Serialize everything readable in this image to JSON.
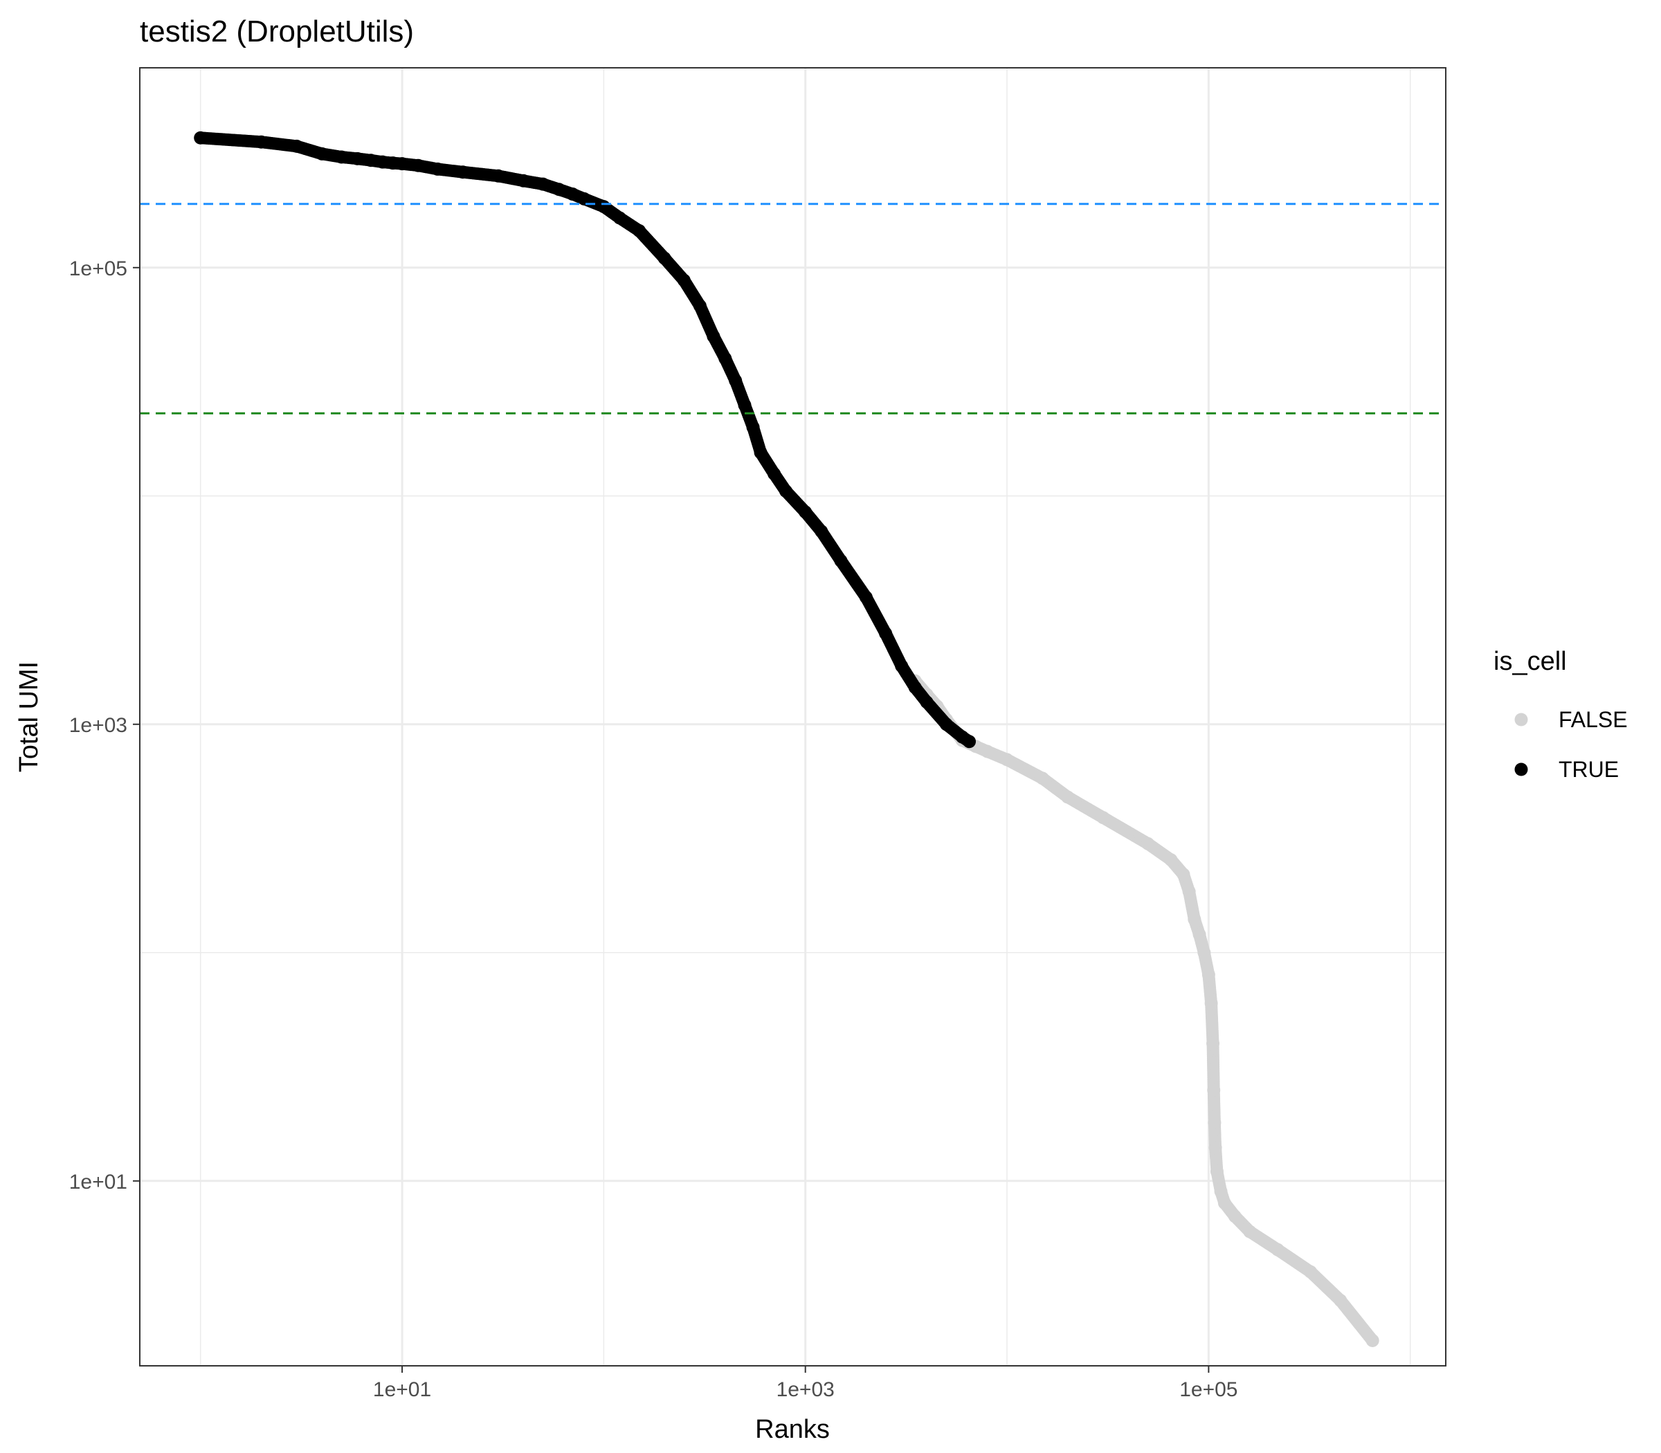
{
  "chart_data": {
    "type": "scatter",
    "title": "testis2 (DropletUtils)",
    "xlabel": "Ranks",
    "ylabel": "Total UMI",
    "x_scale": "log10",
    "y_scale": "log10",
    "xlim": [
      0.5,
      1500000
    ],
    "ylim": [
      1.55,
      750000
    ],
    "x_ticks": [
      {
        "value": 10,
        "label": "1e+01"
      },
      {
        "value": 1000,
        "label": "1e+03"
      },
      {
        "value": 100000,
        "label": "1e+05"
      }
    ],
    "y_ticks": [
      {
        "value": 10,
        "label": "1e+01"
      },
      {
        "value": 1000,
        "label": "1e+03"
      },
      {
        "value": 100000,
        "label": "1e+05"
      }
    ],
    "grid": true,
    "hlines": [
      {
        "y": 190000,
        "color": "#1E90FF",
        "style": "dashed"
      },
      {
        "y": 23000,
        "color": "#228B22",
        "style": "dashed"
      }
    ],
    "legend": {
      "title": "is_cell",
      "placement": "right",
      "entries": [
        {
          "label": "FALSE",
          "color": "#D3D3D3"
        },
        {
          "label": "TRUE",
          "color": "#000000"
        }
      ]
    },
    "series": [
      {
        "label": "TRUE",
        "color": "#000000",
        "points": [
          [
            1,
            370000
          ],
          [
            2,
            355000
          ],
          [
            3,
            340000
          ],
          [
            4,
            315000
          ],
          [
            5,
            305000
          ],
          [
            6,
            300000
          ],
          [
            7,
            295000
          ],
          [
            8,
            290000
          ],
          [
            9,
            287000
          ],
          [
            10,
            285000
          ],
          [
            12,
            280000
          ],
          [
            15,
            270000
          ],
          [
            20,
            262000
          ],
          [
            30,
            252000
          ],
          [
            40,
            240000
          ],
          [
            50,
            232000
          ],
          [
            60,
            220000
          ],
          [
            70,
            210000
          ],
          [
            80,
            200000
          ],
          [
            100,
            185000
          ],
          [
            120,
            165000
          ],
          [
            150,
            145000
          ],
          [
            200,
            110000
          ],
          [
            250,
            88000
          ],
          [
            300,
            68000
          ],
          [
            350,
            50000
          ],
          [
            400,
            40000
          ],
          [
            450,
            32000
          ],
          [
            500,
            25000
          ],
          [
            550,
            20000
          ],
          [
            600,
            15500
          ],
          [
            700,
            12500
          ],
          [
            800,
            10500
          ],
          [
            1000,
            8500
          ],
          [
            1200,
            7000
          ],
          [
            1500,
            5200
          ],
          [
            2000,
            3600
          ],
          [
            2500,
            2500
          ],
          [
            3000,
            1800
          ],
          [
            3500,
            1450
          ],
          [
            4000,
            1250
          ],
          [
            5000,
            1000
          ],
          [
            6000,
            880
          ],
          [
            6500,
            840
          ]
        ]
      },
      {
        "label": "FALSE",
        "color": "#D3D3D3",
        "points": [
          [
            3500,
            1550
          ],
          [
            4000,
            1350
          ],
          [
            4500,
            1200
          ],
          [
            5000,
            1050
          ],
          [
            6000,
            850
          ],
          [
            7000,
            800
          ],
          [
            8000,
            760
          ],
          [
            10000,
            700
          ],
          [
            15000,
            580
          ],
          [
            20000,
            480
          ],
          [
            30000,
            390
          ],
          [
            50000,
            300
          ],
          [
            65000,
            255
          ],
          [
            75000,
            220
          ],
          [
            80000,
            185
          ],
          [
            85000,
            140
          ],
          [
            90000,
            120
          ],
          [
            95000,
            100
          ],
          [
            100000,
            80
          ],
          [
            103000,
            60
          ],
          [
            105000,
            40
          ],
          [
            106000,
            25
          ],
          [
            107000,
            18
          ],
          [
            108000,
            14
          ],
          [
            110000,
            11
          ],
          [
            115000,
            9
          ],
          [
            120000,
            8
          ],
          [
            135000,
            7
          ],
          [
            160000,
            6
          ],
          [
            220000,
            5
          ],
          [
            320000,
            4
          ],
          [
            450000,
            3
          ],
          [
            650000,
            2
          ]
        ]
      }
    ]
  }
}
